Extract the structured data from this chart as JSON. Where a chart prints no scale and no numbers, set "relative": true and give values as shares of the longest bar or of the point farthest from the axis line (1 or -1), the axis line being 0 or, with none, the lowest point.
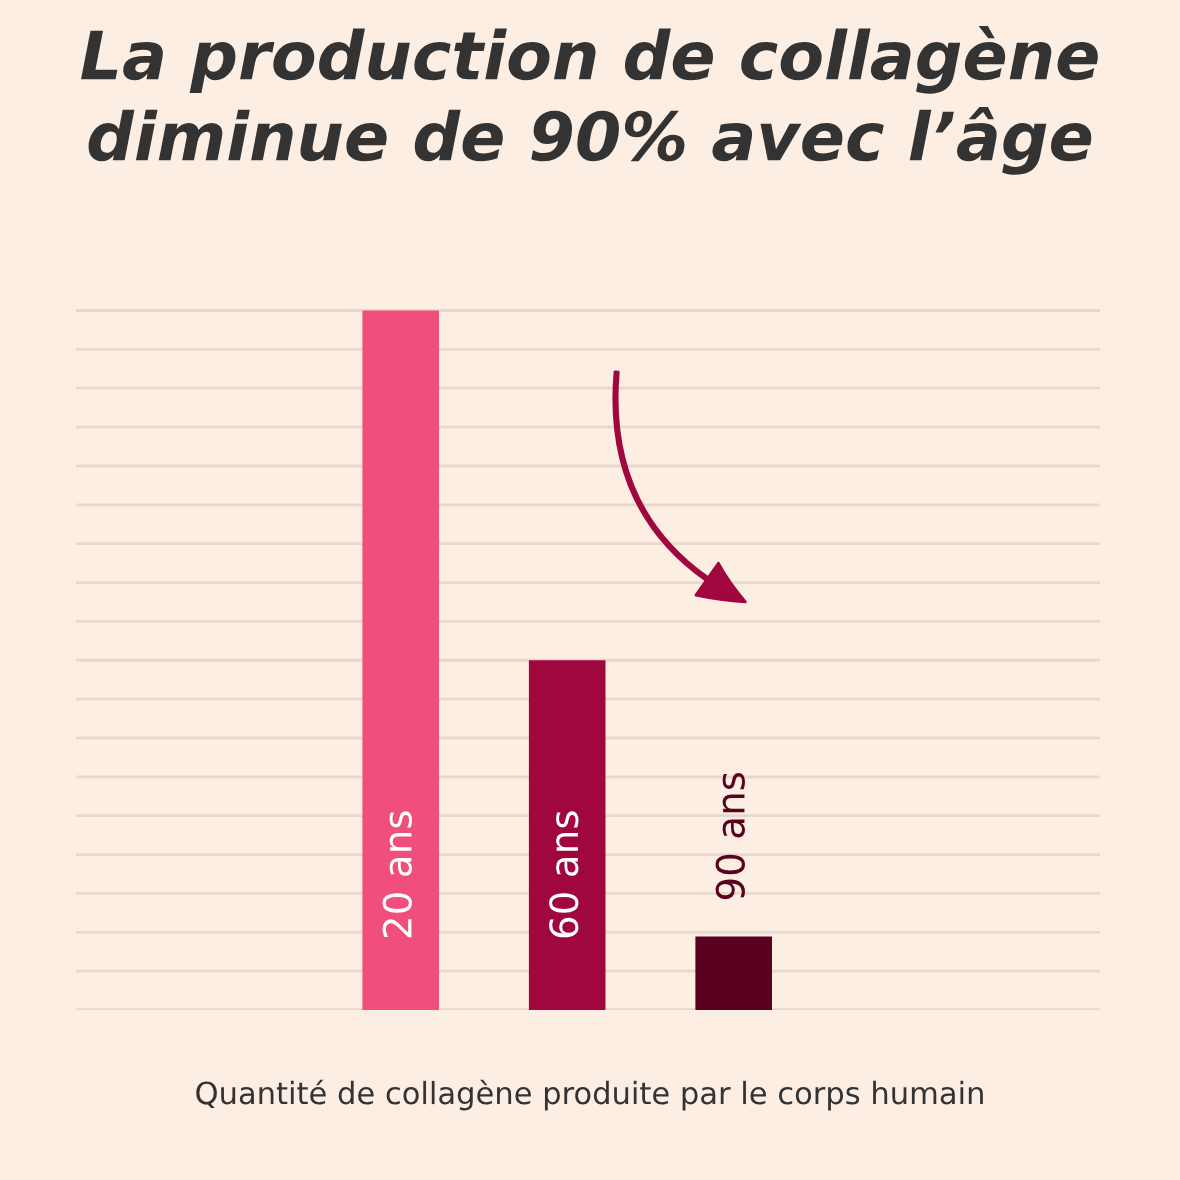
{
  "chart_data": {
    "type": "bar",
    "relative": true,
    "title": "La production de collagène\ndiminue de 90% avec l’âge",
    "xlabel": "Quantité de collagène produite par le corps humain",
    "categories": [
      "20 ans",
      "60 ans",
      "90 ans"
    ],
    "values": [
      1,
      0.5,
      0.105
    ],
    "colors": [
      "#ef4f7a",
      "#a0073f",
      "#5a0020"
    ],
    "grid": "y"
  }
}
